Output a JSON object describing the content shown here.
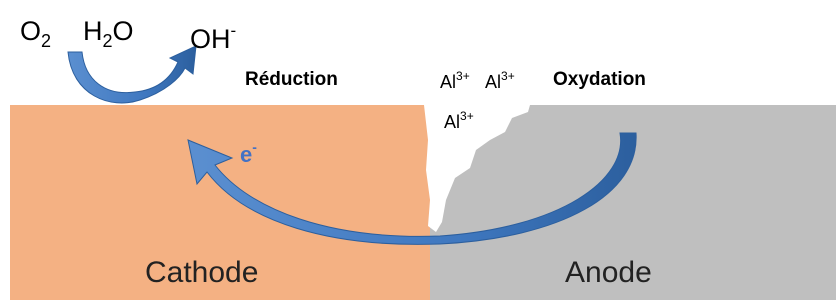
{
  "molecules": {
    "o2": {
      "element": "O",
      "subscript": "2"
    },
    "h2o": {
      "first": "H",
      "subscript": "2",
      "last": "O"
    },
    "oh": {
      "symbol": "OH",
      "charge": "-"
    }
  },
  "labels": {
    "reduction": "Réduction",
    "oxidation": "Oxydation",
    "cathode": "Cathode",
    "anode": "Anode"
  },
  "ions": [
    {
      "symbol": "Al",
      "charge": "3+"
    },
    {
      "symbol": "Al",
      "charge": "3+"
    },
    {
      "symbol": "Al",
      "charge": "3+"
    }
  ],
  "electron": {
    "symbol": "e",
    "charge": "-"
  }
}
